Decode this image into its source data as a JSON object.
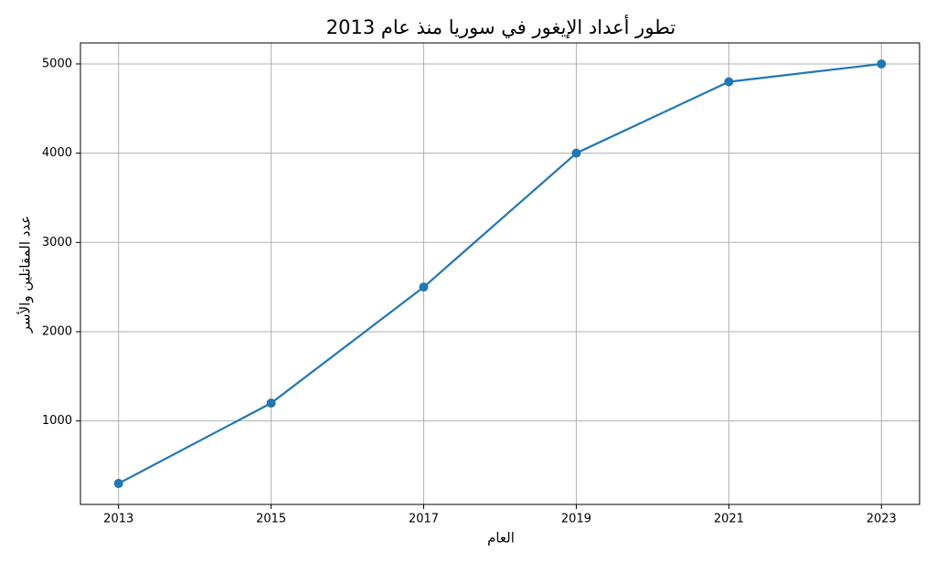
{
  "chart_data": {
    "type": "line",
    "title": "تطور أعداد الإيغور في سوريا منذ عام 2013",
    "xlabel": "العام",
    "ylabel": "عدد المقاتلين والأسر",
    "x": [
      2013,
      2015,
      2017,
      2019,
      2021,
      2023
    ],
    "values": [
      300,
      1200,
      2500,
      4000,
      4800,
      5000
    ],
    "color": "#1f77b4",
    "xlim": [
      2012.5,
      2023.5
    ],
    "xticks": [
      2013,
      2015,
      2017,
      2019,
      2021,
      2023
    ],
    "ylim": [
      65,
      5235
    ],
    "yticks": [
      1000,
      2000,
      3000,
      4000,
      5000
    ],
    "grid": true
  }
}
